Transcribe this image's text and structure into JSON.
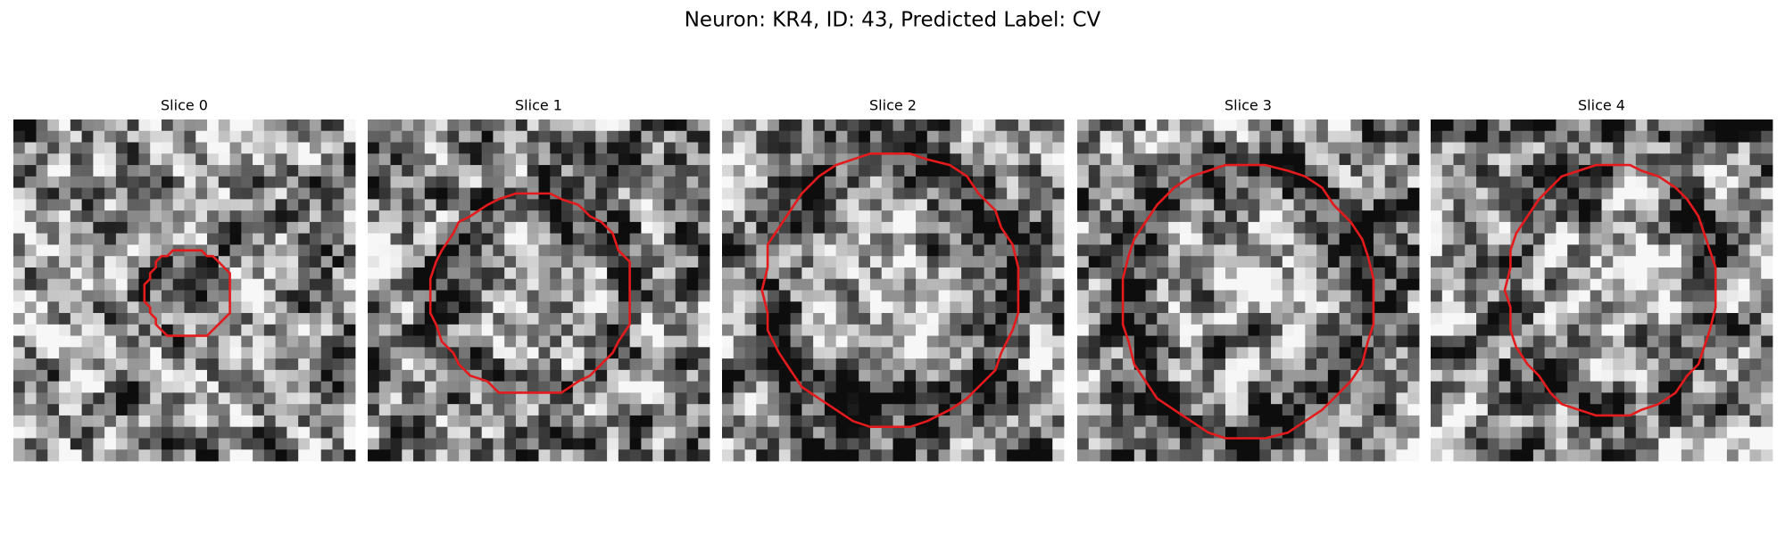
{
  "title": "Neuron: KR4, ID: 43, Predicted Label: CV",
  "panels": [
    "Slice 0",
    "Slice 1",
    "Slice 2",
    "Slice 3",
    "Slice 4"
  ]
}
